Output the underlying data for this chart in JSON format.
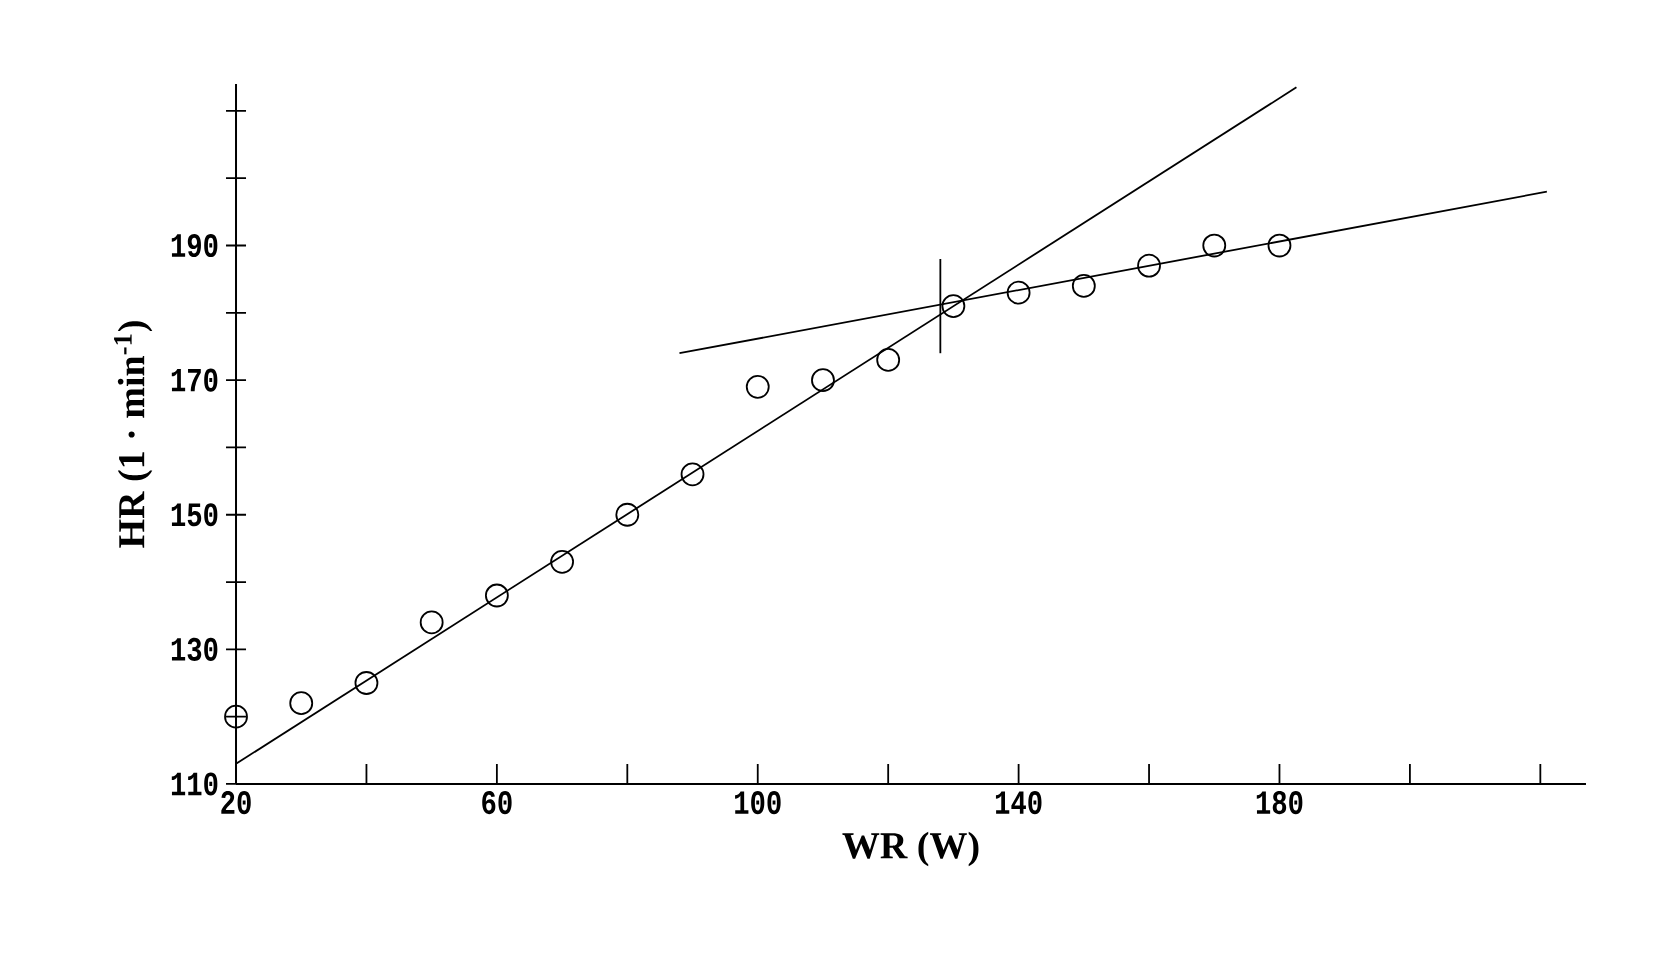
{
  "chart_data": {
    "type": "scatter",
    "xlabel": "WR (W)",
    "ylabel": "HR (1 · min$^{-1}$)",
    "xlim": [
      20,
      227
    ],
    "ylim": [
      110,
      214
    ],
    "xticks": [
      20,
      {
        "value": 40,
        "label": null
      },
      60,
      {
        "value": 80,
        "label": null
      },
      100,
      {
        "value": 120,
        "label": null
      },
      140,
      {
        "value": 160,
        "label": null
      },
      180,
      {
        "value": 200,
        "label": null
      },
      {
        "value": 220,
        "label": null
      }
    ],
    "yticks": [
      110,
      {
        "value": 120,
        "label": null
      },
      130,
      {
        "value": 140,
        "label": null
      },
      150,
      {
        "value": 160,
        "label": null
      },
      170,
      {
        "value": 180,
        "label": null
      },
      190,
      {
        "value": 200,
        "label": null
      },
      {
        "value": 210,
        "label": null
      }
    ],
    "grid": false,
    "series": [
      {
        "marker": "circle",
        "color": "#000000",
        "x": [
          20,
          30,
          40,
          50,
          60,
          70,
          80,
          90,
          100,
          110,
          120,
          130,
          140,
          150,
          160,
          170,
          180
        ],
        "values": [
          120,
          122,
          125,
          134,
          138,
          143,
          150,
          156,
          169,
          170,
          173,
          181,
          183,
          184,
          187,
          190,
          190
        ]
      },
      {
        "type": "line",
        "marker": "none",
        "color": "#000000",
        "x": [
          20,
          182.6
        ],
        "values": [
          113,
          213.5
        ]
      },
      {
        "type": "line",
        "marker": "none",
        "color": "#000000",
        "x": [
          88,
          221
        ],
        "values": [
          174,
          198
        ]
      },
      {
        "type": "line",
        "marker": "none",
        "color": "#000000",
        "x": [
          128,
          128
        ],
        "values": [
          174,
          188
        ]
      }
    ]
  }
}
